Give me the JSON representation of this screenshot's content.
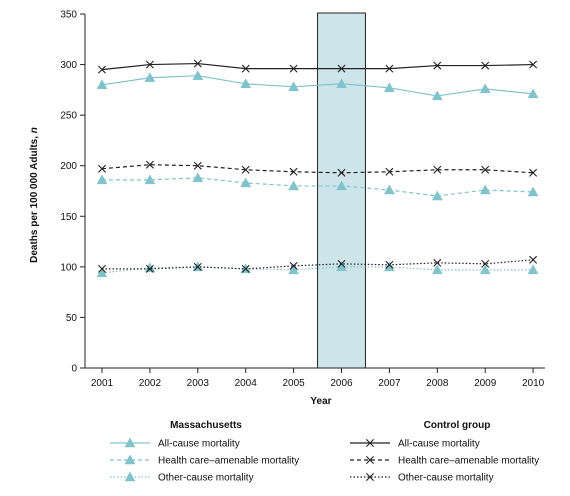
{
  "chart_data": {
    "type": "line",
    "xlabel": "Year",
    "ylabel": "Deaths per 100 000 Adults, ",
    "ylabel_italic": "n",
    "ylim": [
      0,
      350
    ],
    "yticks": [
      0,
      50,
      100,
      150,
      200,
      250,
      300,
      350
    ],
    "categories": [
      "2001",
      "2002",
      "2003",
      "2004",
      "2005",
      "2006",
      "2007",
      "2008",
      "2009",
      "2010"
    ],
    "highlight_category": "2006",
    "grid": false,
    "colors": {
      "massachusetts": "#7fc4cc",
      "control": "#222222",
      "highlight_fill": "#cde5ea"
    },
    "series": [
      {
        "group": "Massachusetts",
        "name": "All-cause mortality",
        "marker": "triangle",
        "dash": "solid",
        "values": [
          280,
          287,
          289,
          281,
          278,
          281,
          277,
          269,
          276,
          271
        ]
      },
      {
        "group": "Massachusetts",
        "name": "Health care–amenable mortality",
        "marker": "triangle",
        "dash": "dashed",
        "values": [
          186,
          186,
          188,
          183,
          180,
          180,
          176,
          170,
          176,
          174
        ]
      },
      {
        "group": "Massachusetts",
        "name": "Other-cause mortality",
        "marker": "triangle",
        "dash": "dotted",
        "values": [
          94,
          99,
          100,
          98,
          97,
          100,
          100,
          97,
          97,
          97
        ]
      },
      {
        "group": "Control group",
        "name": "All-cause mortality",
        "marker": "x",
        "dash": "solid",
        "values": [
          295,
          300,
          301,
          296,
          296,
          296,
          296,
          299,
          299,
          300
        ]
      },
      {
        "group": "Control group",
        "name": "Health care–amenable mortality",
        "marker": "x",
        "dash": "dashed",
        "values": [
          197,
          201,
          200,
          196,
          194,
          193,
          194,
          196,
          196,
          193
        ]
      },
      {
        "group": "Control group",
        "name": "Other-cause mortality",
        "marker": "x",
        "dash": "dotted",
        "values": [
          98,
          98,
          100,
          98,
          101,
          103,
          102,
          104,
          103,
          107
        ]
      }
    ],
    "legend": {
      "groups": [
        "Massachusetts",
        "Control group"
      ]
    }
  }
}
